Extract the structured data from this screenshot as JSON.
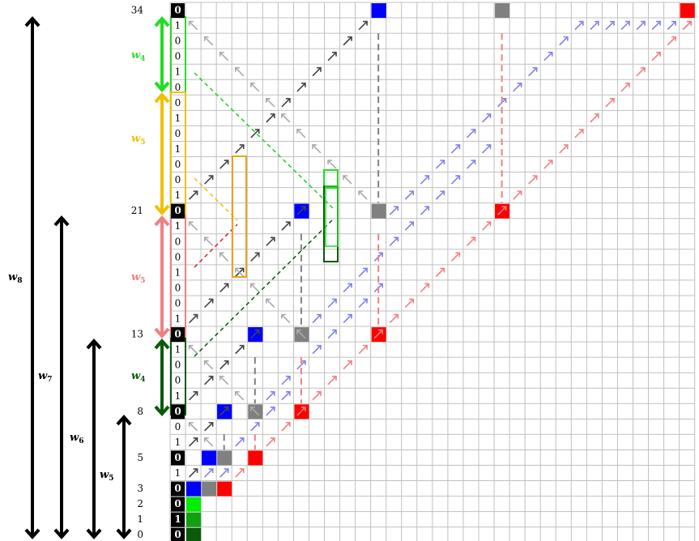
{
  "y_ticks": [
    "0",
    "1",
    "2",
    "3",
    "5",
    "8",
    "13",
    "21",
    "34"
  ],
  "w_labels": [
    {
      "id": "w8",
      "base": "w",
      "sub": "8",
      "color": "#000000"
    },
    {
      "id": "w7",
      "base": "w",
      "sub": "7",
      "color": "#000000"
    },
    {
      "id": "w6",
      "base": "w",
      "sub": "6",
      "color": "#000000"
    },
    {
      "id": "w5",
      "base": "w",
      "sub": "5",
      "color": "#000000"
    },
    {
      "id": "w4-green",
      "base": "w",
      "sub": "4",
      "color": "#33dd33"
    },
    {
      "id": "w5-yellow",
      "base": "w",
      "sub": "5",
      "color": "#f0c000"
    },
    {
      "id": "w5-pink",
      "base": "w",
      "sub": "5",
      "color": "#f08080"
    },
    {
      "id": "w4-dark",
      "base": "w",
      "sub": "4",
      "color": "#0a5a0a"
    }
  ],
  "bit_column": {
    "34": "0",
    "33": "1",
    "32": "0",
    "31": "0",
    "30": "1",
    "29": "0",
    "28": "0",
    "27": "1",
    "26": "0",
    "25": "1",
    "24": "0",
    "23": "0",
    "22": "1",
    "21": "0",
    "20": "1",
    "19": "0",
    "18": "0",
    "17": "1",
    "16": "0",
    "15": "0",
    "14": "1",
    "13": "0",
    "12": "1",
    "11": "0",
    "10": "0",
    "9": "1",
    "8": "0",
    "7": "0",
    "6": "1",
    "5": "0",
    "4": "1",
    "3": "0",
    "2": "0",
    "1": "1",
    "0": "0"
  },
  "colors": {
    "grid": "#c0c0c0",
    "blue": "#0000ff",
    "gray": "#808080",
    "red": "#ff0000",
    "green_bright": "#00ee00",
    "green_mid": "#10a010",
    "green_dark": "#0a5a0a",
    "arrow_dark": "#444444",
    "arrow_gray": "#aaaaaa",
    "arrow_blue": "#8080f0",
    "arrow_red": "#f08080",
    "yellow": "#f0c000",
    "orange": "#f0a020",
    "pink": "#f08080"
  }
}
